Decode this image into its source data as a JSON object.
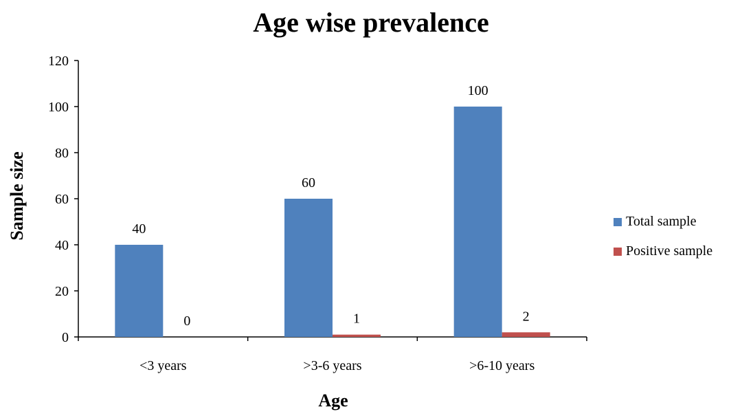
{
  "chart_data": {
    "type": "bar",
    "title": "Age wise prevalence",
    "xlabel": "Age",
    "ylabel": "Sample size",
    "categories": [
      "<3 years",
      ">3-6 years",
      ">6-10 years"
    ],
    "series": [
      {
        "name": "Total sample",
        "values": [
          40,
          60,
          100
        ],
        "color": "#4F81BD"
      },
      {
        "name": "Positive sample",
        "values": [
          0,
          1,
          2
        ],
        "color": "#C0504D"
      }
    ],
    "ylim": [
      0,
      120
    ],
    "yticks": [
      0,
      20,
      40,
      60,
      80,
      100,
      120
    ],
    "grid": false,
    "legend_position": "right"
  }
}
